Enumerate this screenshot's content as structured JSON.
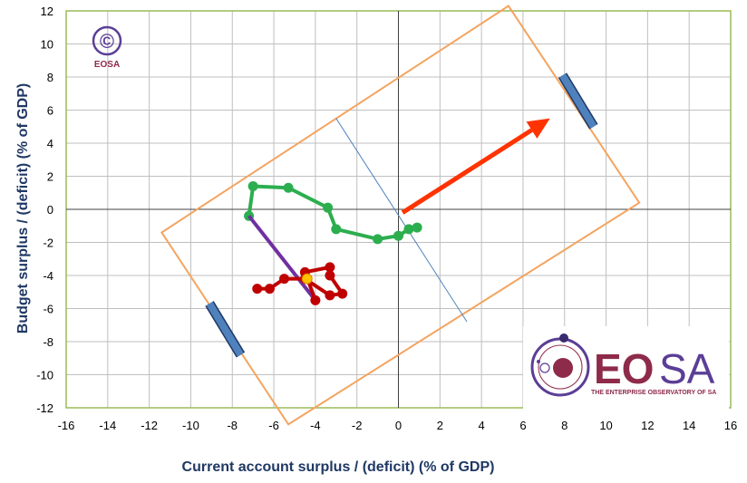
{
  "chart_data": {
    "type": "line",
    "xlabel": "Current account surplus / (deficit) (% of GDP)",
    "ylabel": "Budget surplus / (deficit) (% of GDP)",
    "xlim": [
      -16,
      16
    ],
    "ylim": [
      -12,
      12
    ],
    "xticks": [
      -16,
      -14,
      -12,
      -10,
      -8,
      -6,
      -4,
      -2,
      0,
      2,
      4,
      6,
      8,
      10,
      12,
      14,
      16
    ],
    "yticks": [
      -12,
      -10,
      -8,
      -6,
      -4,
      -2,
      0,
      2,
      4,
      6,
      8,
      10,
      12
    ],
    "grid": true,
    "colors": {
      "plot_border": "#9bbb59",
      "grid": "#bfbfbf",
      "series_green": "#2cae4f",
      "series_red": "#c00000",
      "series_purple": "#7030a0",
      "highlight_point": "#ffc000",
      "frame_rectangle": "#f4a460",
      "arrow": "#ff3300",
      "band": "#4f81bd",
      "divider_line": "#4f81bd",
      "brand": "#8e2a4a",
      "brand_secondary": "#5b3e96"
    },
    "series": [
      {
        "color_key": "series_green",
        "points": [
          [
            0.9,
            -1.1
          ],
          [
            0.5,
            -1.2
          ],
          [
            0.0,
            -1.6
          ],
          [
            -1.0,
            -1.8
          ],
          [
            -3.0,
            -1.2
          ],
          [
            -3.4,
            0.1
          ],
          [
            -5.3,
            1.3
          ],
          [
            -7.0,
            1.4
          ],
          [
            -7.2,
            -0.4
          ]
        ]
      },
      {
        "color_key": "series_purple",
        "points": [
          [
            -7.2,
            -0.4
          ],
          [
            -4.0,
            -5.5
          ]
        ]
      },
      {
        "color_key": "series_red",
        "points": [
          [
            -4.0,
            -5.5
          ],
          [
            -4.5,
            -3.8
          ],
          [
            -3.3,
            -3.5
          ],
          [
            -3.3,
            -4.0
          ],
          [
            -2.7,
            -5.1
          ],
          [
            -3.3,
            -5.2
          ],
          [
            -4.5,
            -4.2
          ],
          [
            -5.5,
            -4.2
          ],
          [
            -6.2,
            -4.8
          ],
          [
            -6.8,
            -4.8
          ]
        ]
      }
    ],
    "highlight_point": [
      -4.4,
      -4.2
    ],
    "annotations": {
      "arrow": {
        "from": [
          0.2,
          -0.2
        ],
        "to": [
          7.3,
          5.5
        ]
      },
      "divider_line": {
        "from": [
          -3.0,
          5.5
        ],
        "to": [
          3.3,
          -6.8
        ]
      },
      "frame_rectangle": [
        [
          5.3,
          12.3
        ],
        [
          11.6,
          0.4
        ],
        [
          -5.3,
          -13.0
        ],
        [
          -11.4,
          -1.4
        ]
      ],
      "bands": [
        {
          "from": [
            7.9,
            8.1
          ],
          "to": [
            9.4,
            5.0
          ]
        },
        {
          "from": [
            -9.1,
            -5.7
          ],
          "to": [
            -7.6,
            -8.8
          ]
        }
      ]
    }
  },
  "logos": {
    "small": {
      "symbol": "©",
      "text": "EOSA"
    },
    "large": {
      "eo": "EO",
      "sa": "SA",
      "tagline": "THE ENTERPRISE OBSERVATORY OF SA"
    }
  }
}
